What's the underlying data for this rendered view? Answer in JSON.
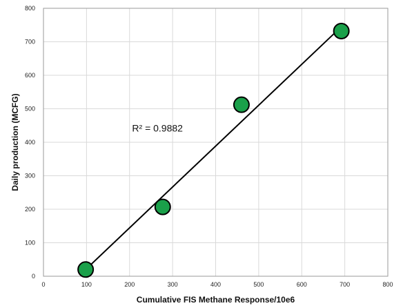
{
  "chart_data": {
    "type": "scatter",
    "title": "",
    "xlabel": "Cumulative FIS Methane Response/10e6",
    "ylabel": "Daily production (MCFG)",
    "xlim": [
      0,
      800
    ],
    "ylim": [
      0,
      800
    ],
    "xticks": [
      "0",
      "100",
      "200",
      "300",
      "400",
      "500",
      "600",
      "700",
      "800"
    ],
    "yticks": [
      "0",
      "100",
      "200",
      "300",
      "400",
      "500",
      "600",
      "700",
      "800"
    ],
    "grid": true,
    "legend": "none",
    "series": [
      {
        "x": [
          98,
          277,
          460,
          692
        ],
        "y": [
          20,
          207,
          512,
          732
        ],
        "color": "#1aa04a"
      }
    ],
    "trendline": {
      "type": "linear",
      "x_start": 98,
      "y_start": 20,
      "x_end": 692,
      "y_end": 745,
      "color": "#000000"
    },
    "annotation": {
      "text": "R² = 0.9882",
      "x": 270,
      "y": 442
    }
  }
}
